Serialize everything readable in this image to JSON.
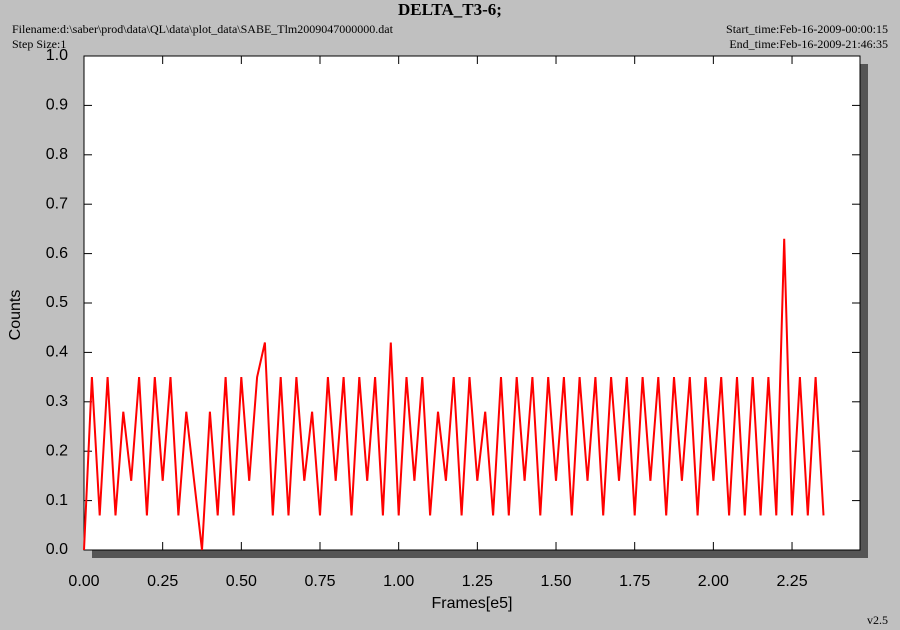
{
  "chart_data": {
    "type": "line",
    "title": "DELTA_T3-6;",
    "filename": "Filename:d:\\saber\\prod\\data\\QL\\data\\plot_data\\SABE_Tlm2009047000000.dat",
    "step_size": "Step Size:1",
    "start_time": "Start_time:Feb-16-2009-00:00:15",
    "end_time": "End_time:Feb-16-2009-21:46:35",
    "version": "v2.5",
    "x_label": "Frames[e5]",
    "y_label": "Counts",
    "xlim": [
      0,
      2.466
    ],
    "ylim": [
      0,
      1.0
    ],
    "xticks": [
      {
        "value": 0,
        "label": "0.00"
      },
      0.25,
      {
        "value": 0.5,
        "label": "0.50"
      },
      0.75,
      {
        "value": 1,
        "label": "1.00"
      },
      1.25,
      {
        "value": 1.5,
        "label": "1.50"
      },
      1.75,
      {
        "value": 2,
        "label": "2.00"
      },
      2.25
    ],
    "yticks": [
      {
        "value": 0,
        "label": "0.0"
      },
      0.1,
      0.2,
      0.3,
      0.4,
      0.5,
      0.6,
      0.7,
      0.8,
      0.9,
      {
        "value": 1,
        "label": "1.0"
      }
    ],
    "series": [
      {
        "color": "#ff0000",
        "x": [
          0,
          0.025,
          0.05,
          0.075,
          0.1,
          0.125,
          0.15,
          0.175,
          0.2,
          0.225,
          0.25,
          0.275,
          0.3,
          0.325,
          0.35,
          0.375,
          0.4,
          0.425,
          0.45,
          0.475,
          0.5,
          0.525,
          0.55,
          0.575,
          0.6,
          0.625,
          0.65,
          0.675,
          0.7,
          0.725,
          0.75,
          0.775,
          0.8,
          0.825,
          0.85,
          0.875,
          0.9,
          0.925,
          0.95,
          0.975,
          1,
          1.025,
          1.05,
          1.075,
          1.1,
          1.125,
          1.15,
          1.175,
          1.2,
          1.225,
          1.25,
          1.275,
          1.3,
          1.325,
          1.35,
          1.375,
          1.4,
          1.425,
          1.45,
          1.475,
          1.5,
          1.525,
          1.55,
          1.575,
          1.6,
          1.625,
          1.65,
          1.675,
          1.7,
          1.725,
          1.75,
          1.775,
          1.8,
          1.825,
          1.85,
          1.875,
          1.9,
          1.925,
          1.95,
          1.975,
          2,
          2.025,
          2.05,
          2.075,
          2.1,
          2.125,
          2.15,
          2.175,
          2.2,
          2.225,
          2.25,
          2.275,
          2.3,
          2.325,
          2.35
        ],
        "values": [
          0.0,
          0.35,
          0.07,
          0.35,
          0.07,
          0.28,
          0.14,
          0.35,
          0.07,
          0.35,
          0.14,
          0.35,
          0.07,
          0.28,
          0.14,
          0.0,
          0.28,
          0.07,
          0.35,
          0.07,
          0.35,
          0.14,
          0.35,
          0.42,
          0.07,
          0.35,
          0.07,
          0.35,
          0.14,
          0.28,
          0.07,
          0.35,
          0.14,
          0.35,
          0.07,
          0.35,
          0.14,
          0.35,
          0.07,
          0.42,
          0.07,
          0.35,
          0.14,
          0.35,
          0.07,
          0.28,
          0.14,
          0.35,
          0.07,
          0.35,
          0.14,
          0.28,
          0.07,
          0.35,
          0.07,
          0.35,
          0.14,
          0.35,
          0.07,
          0.35,
          0.14,
          0.35,
          0.07,
          0.35,
          0.14,
          0.35,
          0.07,
          0.35,
          0.14,
          0.35,
          0.07,
          0.35,
          0.14,
          0.35,
          0.07,
          0.35,
          0.14,
          0.35,
          0.07,
          0.35,
          0.14,
          0.35,
          0.07,
          0.35,
          0.07,
          0.35,
          0.07,
          0.35,
          0.07,
          0.63,
          0.07,
          0.35,
          0.07,
          0.35,
          0.07
        ]
      }
    ]
  }
}
